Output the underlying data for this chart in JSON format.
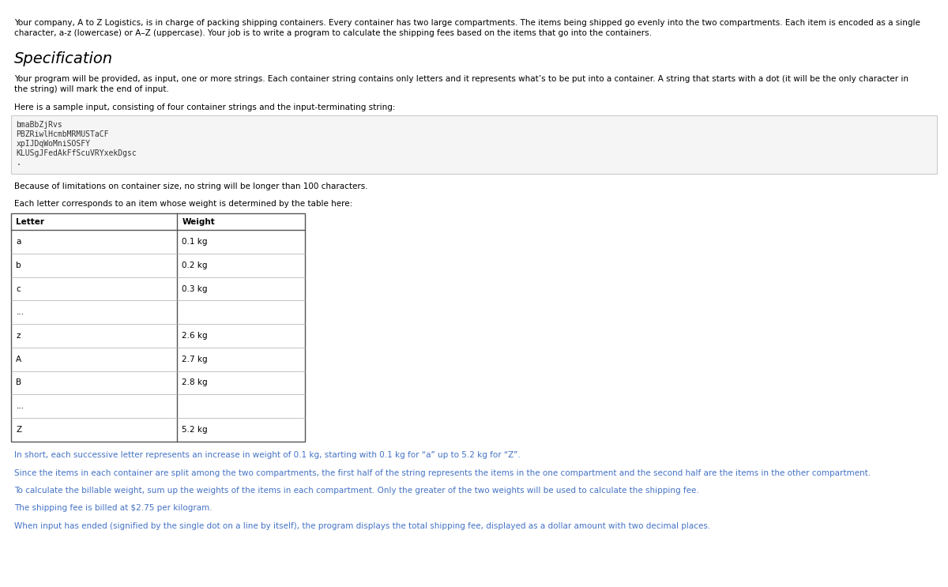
{
  "bg_color": "#ffffff",
  "text_color": "#000000",
  "blue_color": "#4472c4",
  "intro_line1": "Your company, A to Z Logistics, is in charge of packing shipping containers. Every container has two large compartments. The items being shipped go evenly into the two compartments. Each item is encoded as a single",
  "intro_line2": "character, a-z (lowercase) or A–Z (uppercase). Your job is to write a program to calculate the shipping fees based on the items that go into the containers.",
  "section_title": "Specification",
  "spec_line1": "Your program will be provided, as input, one or more strings. Each container string contains only letters and it represents what’s to be put into a container. A string that starts with a dot (it will be the only character in",
  "spec_line2": "the string) will mark the end of input.",
  "sample_intro": "Here is a sample input, consisting of four container strings and the input-terminating string:",
  "code_lines": [
    "bmaBbZjRvs",
    "PBZRiwlHcmbMRMUSTaCF",
    "xpIJDqWoMniSOSFY",
    "KLUSgJFedAkFfScuVRYxekDgsc",
    "."
  ],
  "size_note": "Because of limitations on container size, no string will be longer than 100 characters.",
  "table_intro": "Each letter corresponds to an item whose weight is determined by the table here:",
  "table_headers": [
    "Letter",
    "Weight"
  ],
  "table_rows": [
    [
      "a",
      "0.1 kg"
    ],
    [
      "b",
      "0.2 kg"
    ],
    [
      "c",
      "0.3 kg"
    ],
    [
      "...",
      ""
    ],
    [
      "z",
      "2.6 kg"
    ],
    [
      "A",
      "2.7 kg"
    ],
    [
      "B",
      "2.8 kg"
    ],
    [
      "...",
      ""
    ],
    [
      "Z",
      "5.2 kg"
    ]
  ],
  "summary_text": "In short, each successive letter represents an increase in weight of 0.1 kg, starting with 0.1 kg for “a” up to 5.2 kg for “Z”.",
  "split_text": "Since the items in each container are split among the two compartments, the first half of the string represents the items in the one compartment and the second half are the items in the other compartment.",
  "billable_text": "To calculate the billable weight, sum up the weights of the items in each compartment. Only the greater of the two weights will be used to calculate the shipping fee.",
  "fee_text": "The shipping fee is billed at $2.75 per kilogram.",
  "output_text": "When input has ended (signified by the single dot on a line by itself), the program displays the total shipping fee, displayed as a dollar amount with two decimal places."
}
